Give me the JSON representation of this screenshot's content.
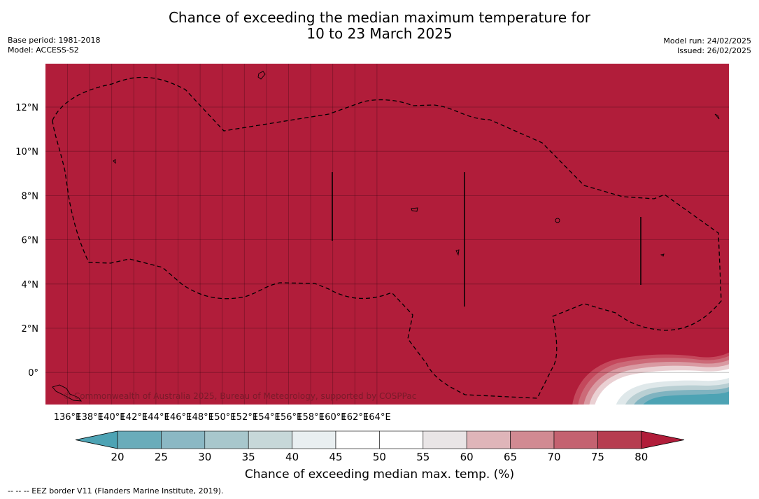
{
  "header": {
    "title_line1": "Chance of exceeding the median maximum temperature for",
    "title_line2": "10 to 23 March 2025",
    "base_period": "Base period: 1981-2018",
    "model": "Model: ACCESS-S2",
    "model_run": "Model run: 24/02/2025",
    "issued": "Issued: 26/02/2025"
  },
  "map": {
    "lat_ticks": [
      "12°N",
      "10°N",
      "8°N",
      "6°N",
      "4°N",
      "2°N",
      "0°"
    ],
    "lon_ticks": [
      "136°E",
      "138°E",
      "140°E",
      "142°E",
      "144°E",
      "146°E",
      "148°E",
      "150°E",
      "152°E",
      "154°E",
      "156°E",
      "158°E",
      "160°E",
      "162°E",
      "164°E"
    ],
    "background_color": "#b11d3a",
    "grid": true,
    "copyright": "© Commonwealth of Australia 2025, Bureau of Meteorology, supported by COSPPac"
  },
  "colorbar": {
    "ticks": [
      "20",
      "25",
      "30",
      "35",
      "40",
      "45",
      "50",
      "55",
      "60",
      "65",
      "70",
      "75",
      "80"
    ],
    "colors": [
      "#6aacba",
      "#8bb8c4",
      "#a8c7cc",
      "#c7d8d9",
      "#e9eff1",
      "#ffffff",
      "#ffffff",
      "#e9e5e6",
      "#dfb5b9",
      "#d18a92",
      "#c46270",
      "#b63d50"
    ],
    "under_color": "#4da3b4",
    "over_color": "#b11d3a",
    "label": "Chance of exceeding median max. temp. (%)"
  },
  "footnote": "--  --  -- EEZ border V11 (Flanders Marine Institute, 2019)."
}
